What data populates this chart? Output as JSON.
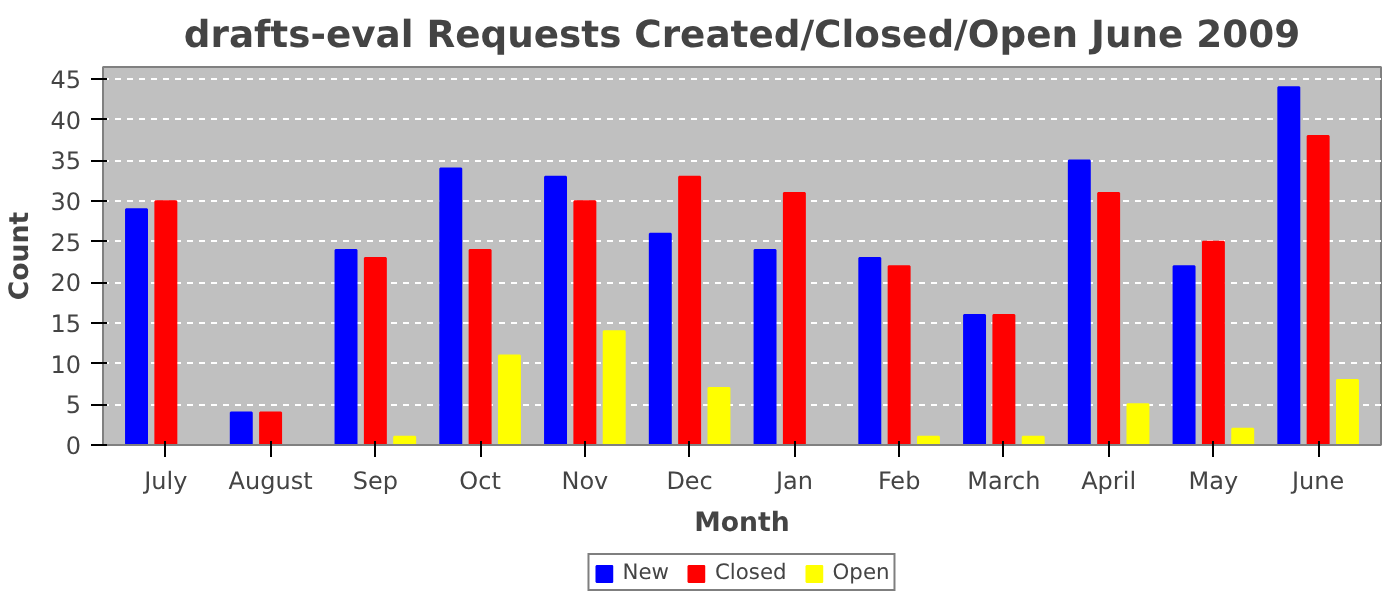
{
  "chart_data": {
    "type": "bar",
    "title": "drafts-eval Requests Created/Closed/Open June 2009",
    "xlabel": "Month",
    "ylabel": "Count",
    "categories": [
      "July",
      "August",
      "Sep",
      "Oct",
      "Nov",
      "Dec",
      "Jan",
      "Feb",
      "March",
      "April",
      "May",
      "June"
    ],
    "series": [
      {
        "name": "New",
        "color": "#0000ff",
        "values": [
          29,
          4,
          24,
          34,
          33,
          26,
          24,
          23,
          16,
          35,
          22,
          44
        ]
      },
      {
        "name": "Closed",
        "color": "#ff0000",
        "values": [
          30,
          4,
          23,
          24,
          30,
          33,
          31,
          22,
          16,
          31,
          25,
          38
        ]
      },
      {
        "name": "Open",
        "color": "#ffff00",
        "values": [
          0,
          0,
          1,
          11,
          14,
          7,
          0,
          1,
          1,
          5,
          2,
          8
        ]
      }
    ],
    "ylim": [
      0,
      46.5
    ],
    "yticks": [
      0,
      5,
      10,
      15,
      20,
      25,
      30,
      35,
      40,
      45
    ],
    "grid": "y",
    "legend": "bottom"
  }
}
